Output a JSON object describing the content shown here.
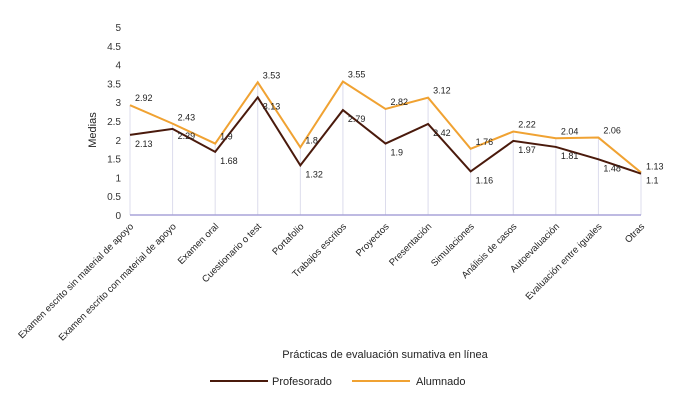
{
  "chart_data": {
    "type": "line",
    "title": "",
    "xlabel": "Prácticas de evaluación sumativa en línea",
    "ylabel": "Medias",
    "ylim": [
      0,
      5
    ],
    "yticks": [
      "0",
      "0.5",
      "1",
      "1.5",
      "2",
      "2.5",
      "3",
      "3.5",
      "4",
      "4.5",
      "5"
    ],
    "grid": "vertical",
    "legend_position": "bottom",
    "categories": [
      "Examen escrito sin material de apoyo",
      "Examen escrito con material de apoyo",
      "Examen oral",
      "Cuestionario o test",
      "Portafolio",
      "Trabajos escritos",
      "Proyectos",
      "Presentación",
      "Simulaciones",
      "Análisis de casos",
      "Autoevaluación",
      "Evaluación entre iguales",
      "Otras"
    ],
    "series": [
      {
        "name": "Profesorado",
        "color": "#4a1a0c",
        "values": [
          2.13,
          2.29,
          1.68,
          3.13,
          1.32,
          2.79,
          1.9,
          2.42,
          1.16,
          1.97,
          1.81,
          1.48,
          1.1
        ],
        "labels": [
          "2.13",
          "2.29",
          "1.68",
          "3.13",
          "1.32",
          "2.79",
          "1.9",
          "2.42",
          "1.16",
          "1.97",
          "1.81",
          "1.48",
          "1.1"
        ]
      },
      {
        "name": "Alumnado",
        "color": "#f0a232",
        "values": [
          2.92,
          2.43,
          1.9,
          3.53,
          1.8,
          3.55,
          2.82,
          3.12,
          1.76,
          2.22,
          2.04,
          2.06,
          1.13
        ],
        "labels": [
          "2.92",
          "2.43",
          "1.9",
          "3.53",
          "1.8",
          "3.55",
          "2.82",
          "3.12",
          "1.76",
          "2.22",
          "2.04",
          "2.06",
          "1.13"
        ]
      }
    ],
    "axis_color": "#a8a4d8",
    "grid_color": "#dcdcec"
  }
}
